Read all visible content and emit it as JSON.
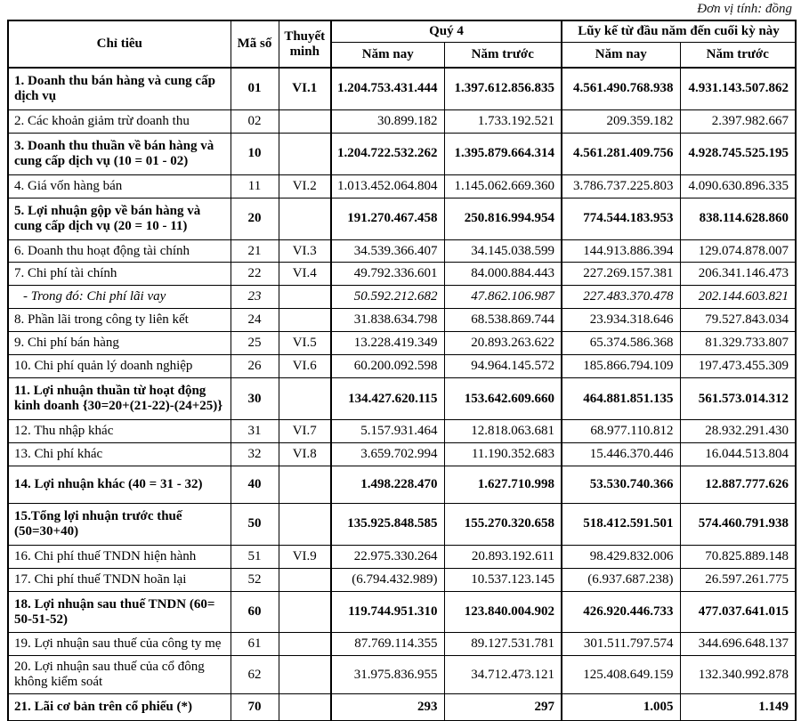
{
  "page": {
    "unit_note": "Đơn vị tính: đồng"
  },
  "table": {
    "header": {
      "col_item": "Chỉ tiêu",
      "col_code": "Mã số",
      "col_note": "Thuyết minh",
      "group_q4": "Quý 4",
      "group_ytd": "Lũy kế từ đầu năm đến cuối kỳ này",
      "sub_now_q4": "Năm nay",
      "sub_prev_q4": "Năm trước",
      "sub_now_ytd": "Năm nay",
      "sub_prev_ytd": "Năm trước"
    },
    "rows": [
      {
        "label": "1. Doanh thu bán hàng và cung cấp dịch vụ",
        "code": "01",
        "note": "VI.1",
        "q4_now": "1.204.753.431.444",
        "q4_prev": "1.397.612.856.835",
        "ytd_now": "4.561.490.768.938",
        "ytd_prev": "4.931.143.507.862",
        "style": "bold"
      },
      {
        "label": "2. Các khoản giảm trừ doanh thu",
        "code": "02",
        "note": "",
        "q4_now": "30.899.182",
        "q4_prev": "1.733.192.521",
        "ytd_now": "209.359.182",
        "ytd_prev": "2.397.982.667",
        "style": "normal"
      },
      {
        "label": "3. Doanh thu thuần về bán hàng và cung cấp dịch vụ (10 = 01 - 02)",
        "code": "10",
        "note": "",
        "q4_now": "1.204.722.532.262",
        "q4_prev": "1.395.879.664.314",
        "ytd_now": "4.561.281.409.756",
        "ytd_prev": "4.928.745.525.195",
        "style": "bold"
      },
      {
        "label": "4. Giá vốn hàng bán",
        "code": "11",
        "note": "VI.2",
        "q4_now": "1.013.452.064.804",
        "q4_prev": "1.145.062.669.360",
        "ytd_now": "3.786.737.225.803",
        "ytd_prev": "4.090.630.896.335",
        "style": "normal"
      },
      {
        "label": "5. Lợi nhuận gộp về bán hàng và cung cấp dịch vụ (20 = 10 - 11)",
        "code": "20",
        "note": "",
        "q4_now": "191.270.467.458",
        "q4_prev": "250.816.994.954",
        "ytd_now": "774.544.183.953",
        "ytd_prev": "838.114.628.860",
        "style": "bold"
      },
      {
        "label": "6. Doanh thu hoạt động tài chính",
        "code": "21",
        "note": "VI.3",
        "q4_now": "34.539.366.407",
        "q4_prev": "34.145.038.599",
        "ytd_now": "144.913.886.394",
        "ytd_prev": "129.074.878.007",
        "style": "normal"
      },
      {
        "label": "7. Chi phí tài chính",
        "code": "22",
        "note": "VI.4",
        "q4_now": "49.792.336.601",
        "q4_prev": "84.000.884.443",
        "ytd_now": "227.269.157.381",
        "ytd_prev": "206.341.146.473",
        "style": "normal"
      },
      {
        "label": "- Trong đó: Chi phí lãi vay",
        "code": "23",
        "note": "",
        "q4_now": "50.592.212.682",
        "q4_prev": "47.862.106.987",
        "ytd_now": "227.483.370.478",
        "ytd_prev": "202.144.603.821",
        "style": "italic"
      },
      {
        "label": "8. Phần lãi trong công ty liên kết",
        "code": "24",
        "note": "",
        "q4_now": "31.838.634.798",
        "q4_prev": "68.538.869.744",
        "ytd_now": "23.934.318.646",
        "ytd_prev": "79.527.843.034",
        "style": "normal"
      },
      {
        "label": "9. Chi phí bán hàng",
        "code": "25",
        "note": "VI.5",
        "q4_now": "13.228.419.349",
        "q4_prev": "20.893.263.622",
        "ytd_now": "65.374.586.368",
        "ytd_prev": "81.329.733.807",
        "style": "normal"
      },
      {
        "label": "10. Chi phí quản lý doanh nghiệp",
        "code": "26",
        "note": "VI.6",
        "q4_now": "60.200.092.598",
        "q4_prev": "94.964.145.572",
        "ytd_now": "185.866.794.109",
        "ytd_prev": "197.473.455.309",
        "style": "normal"
      },
      {
        "label": "11. Lợi nhuận thuần từ hoạt động kinh doanh {30=20+(21-22)-(24+25)}",
        "code": "30",
        "note": "",
        "q4_now": "134.427.620.115",
        "q4_prev": "153.642.609.660",
        "ytd_now": "464.881.851.135",
        "ytd_prev": "561.573.014.312",
        "style": "bold"
      },
      {
        "label": "12. Thu nhập khác",
        "code": "31",
        "note": "VI.7",
        "q4_now": "5.157.931.464",
        "q4_prev": "12.818.063.681",
        "ytd_now": "68.977.110.812",
        "ytd_prev": "28.932.291.430",
        "style": "normal"
      },
      {
        "label": "13. Chi phí khác",
        "code": "32",
        "note": "VI.8",
        "q4_now": "3.659.702.994",
        "q4_prev": "11.190.352.683",
        "ytd_now": "15.446.370.446",
        "ytd_prev": "16.044.513.804",
        "style": "normal"
      },
      {
        "label": "14. Lợi nhuận khác (40 = 31 - 32)",
        "code": "40",
        "note": "",
        "q4_now": "1.498.228.470",
        "q4_prev": "1.627.710.998",
        "ytd_now": "53.530.740.366",
        "ytd_prev": "12.887.777.626",
        "style": "bold",
        "tall": true
      },
      {
        "label": "15.Tổng lợi nhuận trước thuế (50=30+40)",
        "code": "50",
        "note": "",
        "q4_now": "135.925.848.585",
        "q4_prev": "155.270.320.658",
        "ytd_now": "518.412.591.501",
        "ytd_prev": "574.460.791.938",
        "style": "bold"
      },
      {
        "label": "16. Chi phí thuế TNDN hiện hành",
        "code": "51",
        "note": "VI.9",
        "q4_now": "22.975.330.264",
        "q4_prev": "20.893.192.611",
        "ytd_now": "98.429.832.006",
        "ytd_prev": "70.825.889.148",
        "style": "normal"
      },
      {
        "label": "17. Chi phí thuế TNDN hoãn lại",
        "code": "52",
        "note": "",
        "q4_now": "(6.794.432.989)",
        "q4_prev": "10.537.123.145",
        "ytd_now": "(6.937.687.238)",
        "ytd_prev": "26.597.261.775",
        "style": "normal"
      },
      {
        "label": "18. Lợi nhuận sau thuế TNDN (60= 50-51-52)",
        "code": "60",
        "note": "",
        "q4_now": "119.744.951.310",
        "q4_prev": "123.840.004.902",
        "ytd_now": "426.920.446.733",
        "ytd_prev": "477.037.641.015",
        "style": "bold"
      },
      {
        "label": "19. Lợi nhuận sau thuế của công ty mẹ",
        "code": "61",
        "note": "",
        "q4_now": "87.769.114.355",
        "q4_prev": "89.127.531.781",
        "ytd_now": "301.511.797.574",
        "ytd_prev": "344.696.648.137",
        "style": "normal"
      },
      {
        "label": "20. Lợi nhuận sau thuế của cổ đông không kiểm soát",
        "code": "62",
        "note": "",
        "q4_now": "31.975.836.955",
        "q4_prev": "34.712.473.121",
        "ytd_now": "125.408.649.159",
        "ytd_prev": "132.340.992.878",
        "style": "normal"
      },
      {
        "label": "21. Lãi cơ bản trên cổ phiếu (*)",
        "code": "70",
        "note": "",
        "q4_now": "293",
        "q4_prev": "297",
        "ytd_now": "1.005",
        "ytd_prev": "1.149",
        "style": "bold"
      }
    ]
  }
}
